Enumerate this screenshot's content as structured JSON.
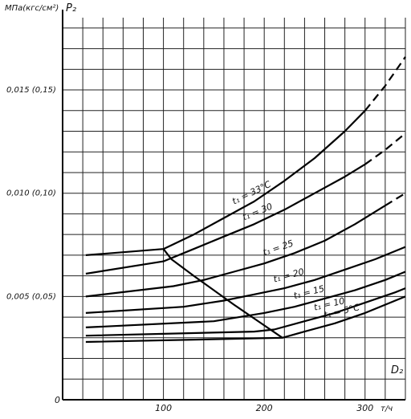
{
  "chart_data": {
    "type": "line",
    "title": "",
    "ylabel": "МПа(кгс/см²)",
    "ylabel_symbol": "P₂",
    "xlabel_unit": "т/ч",
    "xlabel_symbol": "D₂",
    "xlim": [
      0,
      340
    ],
    "ylim": [
      0,
      0.0185
    ],
    "origin_label": "0",
    "x_ticks": [
      {
        "value": 100,
        "label": "100"
      },
      {
        "value": 200,
        "label": "200"
      },
      {
        "value": 300,
        "label": "300"
      }
    ],
    "y_ticks": [
      {
        "value": 0.005,
        "label": "0,005 (0,05)"
      },
      {
        "value": 0.01,
        "label": "0,010 (0,10)"
      },
      {
        "value": 0.015,
        "label": "0,015 (0,15)"
      }
    ],
    "grid": true,
    "series": [
      {
        "name": "t₁ = 33°C",
        "x": [
          23,
          100,
          130,
          160,
          190,
          220,
          250,
          280,
          300
        ],
        "y": [
          0.007,
          0.0073,
          0.008,
          0.0088,
          0.0096,
          0.0106,
          0.0117,
          0.013,
          0.014
        ],
        "dashed_x": [
          300,
          320,
          340
        ],
        "dashed_y": [
          0.014,
          0.0152,
          0.0166
        ]
      },
      {
        "name": "t₁ = 30",
        "x": [
          23,
          100,
          130,
          160,
          190,
          220,
          250,
          280,
          300
        ],
        "y": [
          0.0061,
          0.0067,
          0.0073,
          0.0079,
          0.0085,
          0.0092,
          0.01,
          0.0108,
          0.0114
        ],
        "dashed_x": [
          300,
          320,
          340
        ],
        "dashed_y": [
          0.0114,
          0.0121,
          0.0129
        ]
      },
      {
        "name": "t₁ = 25",
        "x": [
          23,
          110,
          140,
          170,
          200,
          230,
          260,
          290,
          320
        ],
        "y": [
          0.005,
          0.0055,
          0.0058,
          0.0062,
          0.0066,
          0.0071,
          0.0077,
          0.0085,
          0.0094
        ],
        "dashed_x": [
          320,
          340
        ],
        "dashed_y": [
          0.0094,
          0.01
        ]
      },
      {
        "name": "t₁ = 20",
        "x": [
          23,
          120,
          160,
          190,
          220,
          250,
          280,
          310,
          340
        ],
        "y": [
          0.0042,
          0.0045,
          0.0048,
          0.0051,
          0.0054,
          0.0058,
          0.0063,
          0.0068,
          0.0074
        ]
      },
      {
        "name": "t₁ = 15",
        "x": [
          23,
          150,
          175,
          200,
          230,
          260,
          290,
          320,
          340
        ],
        "y": [
          0.0035,
          0.0038,
          0.004,
          0.0042,
          0.0045,
          0.0049,
          0.0053,
          0.0058,
          0.0062
        ]
      },
      {
        "name": "t₁ = 10",
        "x": [
          23,
          190,
          210,
          240,
          270,
          300,
          330,
          340
        ],
        "y": [
          0.0031,
          0.0033,
          0.0034,
          0.0038,
          0.0042,
          0.0047,
          0.0052,
          0.0054
        ]
      },
      {
        "name": "t₁ = 5°C",
        "x": [
          23,
          218,
          240,
          270,
          300,
          330,
          340
        ],
        "y": [
          0.0028,
          0.003,
          0.0033,
          0.0037,
          0.0042,
          0.0048,
          0.005
        ]
      }
    ],
    "limit_line": {
      "x": [
        100,
        108,
        130,
        170,
        200,
        218
      ],
      "y": [
        0.0073,
        0.0068,
        0.006,
        0.0046,
        0.0036,
        0.003
      ]
    }
  }
}
